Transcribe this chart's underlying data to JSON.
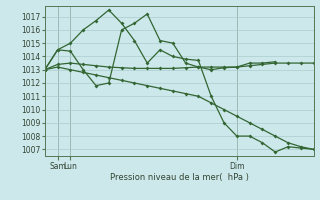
{
  "background_color": "#cce8ea",
  "grid_color": "#aacccc",
  "line_color": "#336633",
  "ylabel": "Pression niveau de la mer(  hPa )",
  "ylim": [
    1006.5,
    1017.8
  ],
  "yticks": [
    1007,
    1008,
    1009,
    1010,
    1011,
    1012,
    1013,
    1014,
    1015,
    1016,
    1017
  ],
  "total_pts": 22,
  "sam_i": 1,
  "lun_i": 2,
  "dim_i": 15,
  "series": [
    {
      "x": [
        0,
        1,
        2,
        3,
        4,
        5,
        6,
        7,
        8,
        9,
        10,
        11,
        12,
        13,
        14,
        15,
        16,
        17,
        18,
        19,
        20,
        21
      ],
      "y": [
        1013.0,
        1013.4,
        1013.5,
        1013.4,
        1013.3,
        1013.2,
        1013.15,
        1013.1,
        1013.1,
        1013.1,
        1013.1,
        1013.15,
        1013.2,
        1013.2,
        1013.2,
        1013.2,
        1013.3,
        1013.4,
        1013.5,
        1013.5,
        1013.5,
        1013.5
      ]
    },
    {
      "x": [
        0,
        1,
        2,
        3,
        4,
        5,
        6,
        7,
        8,
        9,
        10,
        11,
        12,
        13,
        14,
        15,
        16,
        17,
        18
      ],
      "y": [
        1013.0,
        1014.5,
        1014.4,
        1013.0,
        1011.8,
        1012.0,
        1016.0,
        1016.5,
        1017.2,
        1015.2,
        1015.0,
        1013.5,
        1013.2,
        1013.0,
        1013.15,
        1013.2,
        1013.5,
        1013.5,
        1013.6
      ]
    },
    {
      "x": [
        0,
        1,
        2,
        3,
        4,
        5,
        6,
        7,
        8,
        9,
        10,
        11,
        12,
        13,
        14,
        15,
        16,
        17,
        18,
        19,
        20,
        21
      ],
      "y": [
        1013.0,
        1014.5,
        1015.0,
        1016.0,
        1016.7,
        1017.5,
        1016.5,
        1015.2,
        1013.5,
        1014.5,
        1014.0,
        1013.8,
        1013.7,
        1011.0,
        1009.0,
        1008.0,
        1008.0,
        1007.5,
        1006.8,
        1007.2,
        1007.1,
        1007.0
      ]
    },
    {
      "x": [
        0,
        1,
        2,
        3,
        4,
        5,
        6,
        7,
        8,
        9,
        10,
        11,
        12,
        13,
        14,
        15,
        16,
        17,
        18,
        19,
        20,
        21
      ],
      "y": [
        1013.0,
        1013.2,
        1013.0,
        1012.8,
        1012.6,
        1012.4,
        1012.2,
        1012.0,
        1011.8,
        1011.6,
        1011.4,
        1011.2,
        1011.0,
        1010.5,
        1010.0,
        1009.5,
        1009.0,
        1008.5,
        1008.0,
        1007.5,
        1007.2,
        1007.0
      ]
    }
  ]
}
